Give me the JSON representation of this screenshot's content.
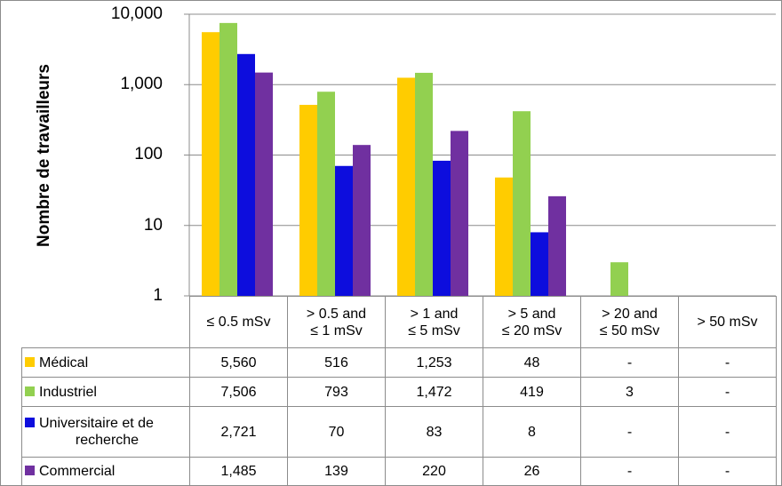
{
  "chart_data": {
    "type": "bar",
    "yscale": "log",
    "ylabel": "Nombre de travailleurs",
    "ylim": [
      1,
      10000
    ],
    "yticks": [
      "1",
      "10",
      "100",
      "1,000",
      "10,000"
    ],
    "categories": [
      [
        "≤ 0.5 mSv"
      ],
      [
        "> 0.5 and",
        "≤ 1 mSv"
      ],
      [
        "> 1 and",
        "≤ 5 mSv"
      ],
      [
        "> 5 and",
        "≤ 20 mSv"
      ],
      [
        "> 20 and",
        "≤ 50 mSv"
      ],
      [
        "> 50 mSv"
      ]
    ],
    "series": [
      {
        "name": [
          "Médical"
        ],
        "color": "#FFCC00",
        "values": [
          5560,
          516,
          1253,
          48,
          null,
          null
        ],
        "labels": [
          "5,560",
          "516",
          "1,253",
          "48",
          "-",
          "-"
        ]
      },
      {
        "name": [
          "Industriel"
        ],
        "color": "#92D050",
        "values": [
          7506,
          793,
          1472,
          419,
          3,
          null
        ],
        "labels": [
          "7,506",
          "793",
          "1,472",
          "419",
          "3",
          "-"
        ]
      },
      {
        "name": [
          "Universitaire et de",
          "recherche"
        ],
        "color": "#0D0DDD",
        "values": [
          2721,
          70,
          83,
          8,
          null,
          null
        ],
        "labels": [
          "2,721",
          "70",
          "83",
          "8",
          "-",
          "-"
        ]
      },
      {
        "name": [
          "Commercial"
        ],
        "color": "#7030A0",
        "values": [
          1485,
          139,
          220,
          26,
          null,
          null
        ],
        "labels": [
          "1,485",
          "139",
          "220",
          "26",
          "-",
          "-"
        ]
      }
    ]
  }
}
